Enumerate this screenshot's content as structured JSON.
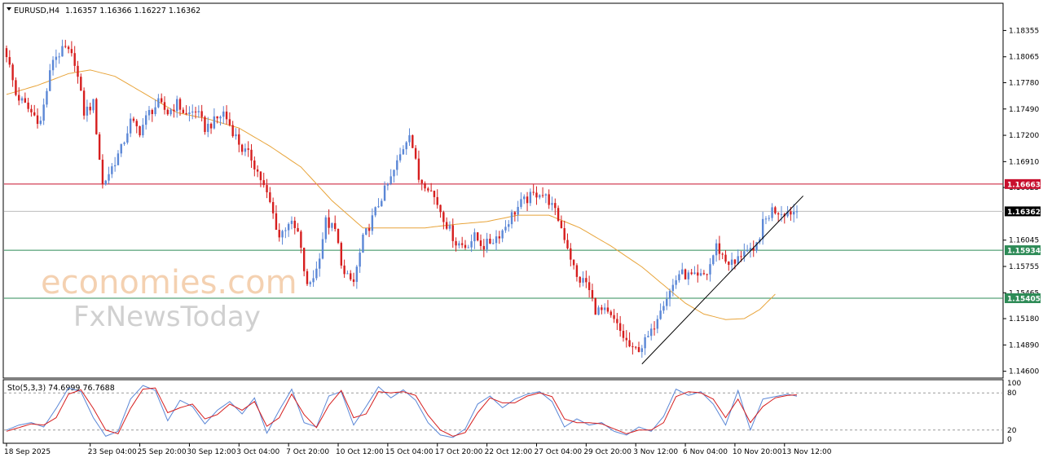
{
  "header": {
    "symbol": "EURUSD,H4",
    "ohlc": "1.16357 1.16366 1.16227 1.16362"
  },
  "watermark": {
    "line1": "economies.com",
    "line2": "FxNewsToday"
  },
  "chart_data": {
    "type": "candlestick",
    "ylim": [
      1.14534,
      1.18646
    ],
    "price_ticks": [
      "1.18355",
      "1.18065",
      "1.17780",
      "1.17490",
      "1.17200",
      "1.16910",
      "1.16625",
      "1.16045",
      "1.15755",
      "1.15465",
      "1.15180",
      "1.14890",
      "1.14600"
    ],
    "x_ticks": [
      {
        "label": "18 Sep 2025",
        "bar": 0
      },
      {
        "label": "23 Sep 04:00",
        "bar": 27
      },
      {
        "label": "25 Sep 20:00",
        "bar": 43
      },
      {
        "label": "30 Sep 12:00",
        "bar": 59
      },
      {
        "label": "3 Oct 04:00",
        "bar": 75
      },
      {
        "label": "7 Oct 20:00",
        "bar": 91
      },
      {
        "label": "10 Oct 12:00",
        "bar": 107
      },
      {
        "label": "15 Oct 04:00",
        "bar": 123
      },
      {
        "label": "17 Oct 20:00",
        "bar": 139
      },
      {
        "label": "22 Oct 12:00",
        "bar": 155
      },
      {
        "label": "27 Oct 04:00",
        "bar": 171
      },
      {
        "label": "29 Oct 20:00",
        "bar": 187
      },
      {
        "label": "3 Nov 12:00",
        "bar": 203
      },
      {
        "label": "6 Nov 04:00",
        "bar": 219
      },
      {
        "label": "10 Nov 20:00",
        "bar": 235
      },
      {
        "label": "13 Nov 12:00",
        "bar": 251
      }
    ],
    "bar_count": 256,
    "close_path": [
      [
        0,
        1.181
      ],
      [
        3,
        1.1765
      ],
      [
        8,
        1.1745
      ],
      [
        11,
        1.1735
      ],
      [
        15,
        1.1805
      ],
      [
        19,
        1.1815
      ],
      [
        22,
        1.1802
      ],
      [
        25,
        1.1745
      ],
      [
        28,
        1.1755
      ],
      [
        31,
        1.1665
      ],
      [
        34,
        1.1685
      ],
      [
        37,
        1.1705
      ],
      [
        40,
        1.1735
      ],
      [
        43,
        1.1725
      ],
      [
        46,
        1.1745
      ],
      [
        49,
        1.1755
      ],
      [
        52,
        1.1745
      ],
      [
        55,
        1.1755
      ],
      [
        58,
        1.1742
      ],
      [
        61,
        1.1748
      ],
      [
        64,
        1.1728
      ],
      [
        67,
        1.1735
      ],
      [
        70,
        1.1745
      ],
      [
        73,
        1.1725
      ],
      [
        76,
        1.1705
      ],
      [
        79,
        1.1695
      ],
      [
        82,
        1.1672
      ],
      [
        85,
        1.1645
      ],
      [
        88,
        1.1608
      ],
      [
        91,
        1.1625
      ],
      [
        94,
        1.1612
      ],
      [
        97,
        1.1552
      ],
      [
        100,
        1.1572
      ],
      [
        103,
        1.1625
      ],
      [
        106,
        1.1615
      ],
      [
        109,
        1.1565
      ],
      [
        112,
        1.1558
      ],
      [
        115,
        1.1605
      ],
      [
        118,
        1.1628
      ],
      [
        121,
        1.1652
      ],
      [
        124,
        1.1672
      ],
      [
        127,
        1.1698
      ],
      [
        130,
        1.1725
      ],
      [
        133,
        1.1672
      ],
      [
        136,
        1.1665
      ],
      [
        139,
        1.1645
      ],
      [
        142,
        1.1622
      ],
      [
        145,
        1.1602
      ],
      [
        148,
        1.1598
      ],
      [
        151,
        1.1608
      ],
      [
        154,
        1.1598
      ],
      [
        157,
        1.1605
      ],
      [
        160,
        1.1615
      ],
      [
        163,
        1.1632
      ],
      [
        166,
        1.1645
      ],
      [
        169,
        1.1652
      ],
      [
        172,
        1.1658
      ],
      [
        175,
        1.1648
      ],
      [
        178,
        1.1628
      ],
      [
        181,
        1.1598
      ],
      [
        184,
        1.1562
      ],
      [
        187,
        1.1558
      ],
      [
        190,
        1.1528
      ],
      [
        193,
        1.1525
      ],
      [
        196,
        1.1515
      ],
      [
        199,
        1.1498
      ],
      [
        202,
        1.1482
      ],
      [
        205,
        1.1488
      ],
      [
        208,
        1.1502
      ],
      [
        211,
        1.1532
      ],
      [
        214,
        1.1548
      ],
      [
        217,
        1.1568
      ],
      [
        220,
        1.1565
      ],
      [
        223,
        1.1562
      ],
      [
        226,
        1.1568
      ],
      [
        229,
        1.1598
      ],
      [
        232,
        1.1582
      ],
      [
        235,
        1.1578
      ],
      [
        238,
        1.1595
      ],
      [
        241,
        1.1588
      ],
      [
        244,
        1.1622
      ],
      [
        247,
        1.1638
      ],
      [
        250,
        1.1636
      ],
      [
        255,
        1.16362
      ]
    ],
    "ma_path": [
      [
        0,
        1.1765
      ],
      [
        10,
        1.1775
      ],
      [
        20,
        1.1788
      ],
      [
        27,
        1.1792
      ],
      [
        35,
        1.1785
      ],
      [
        45,
        1.1765
      ],
      [
        55,
        1.1745
      ],
      [
        65,
        1.1738
      ],
      [
        75,
        1.1728
      ],
      [
        85,
        1.1708
      ],
      [
        95,
        1.1685
      ],
      [
        105,
        1.1648
      ],
      [
        115,
        1.1618
      ],
      [
        125,
        1.1618
      ],
      [
        135,
        1.1618
      ],
      [
        145,
        1.1622
      ],
      [
        155,
        1.1625
      ],
      [
        165,
        1.1632
      ],
      [
        175,
        1.1632
      ],
      [
        185,
        1.1618
      ],
      [
        195,
        1.1598
      ],
      [
        205,
        1.1575
      ],
      [
        212,
        1.1555
      ],
      [
        219,
        1.1535
      ],
      [
        225,
        1.1523
      ],
      [
        232,
        1.1517
      ],
      [
        238,
        1.1518
      ],
      [
        243,
        1.1528
      ],
      [
        248,
        1.1545
      ]
    ],
    "resistance": {
      "value": 1.16663,
      "label": "1.16663",
      "color": "#c8102e"
    },
    "current": {
      "value": 1.16362,
      "label": "1.16362",
      "color": "#000000"
    },
    "support1": {
      "value": 1.15934,
      "label": "1.15934",
      "color": "#2e8b57"
    },
    "support2": {
      "value": 1.15405,
      "label": "1.15405",
      "color": "#2e8b57"
    },
    "trendline": [
      [
        205,
        1.1468
      ],
      [
        255,
        1.16245
      ]
    ],
    "colors": {
      "bull": "#5b87d6",
      "bear": "#d61e1e",
      "ma": "#e8a43a",
      "sto_main": "#5b87d6",
      "sto_signal": "#d61e1e"
    },
    "stochastic": {
      "label": "Sto(5,3,3) 74.6999 76.7688",
      "levels": [
        "100",
        "80",
        "20",
        "0"
      ],
      "ylim": [
        0,
        100
      ],
      "main_path": [
        [
          0,
          20
        ],
        [
          4,
          28
        ],
        [
          8,
          32
        ],
        [
          12,
          25
        ],
        [
          16,
          55
        ],
        [
          20,
          88
        ],
        [
          24,
          82
        ],
        [
          28,
          40
        ],
        [
          32,
          10
        ],
        [
          36,
          18
        ],
        [
          40,
          70
        ],
        [
          44,
          92
        ],
        [
          48,
          84
        ],
        [
          52,
          35
        ],
        [
          56,
          68
        ],
        [
          60,
          58
        ],
        [
          64,
          30
        ],
        [
          68,
          52
        ],
        [
          72,
          66
        ],
        [
          76,
          46
        ],
        [
          80,
          72
        ],
        [
          84,
          15
        ],
        [
          88,
          52
        ],
        [
          92,
          86
        ],
        [
          96,
          32
        ],
        [
          100,
          25
        ],
        [
          104,
          75
        ],
        [
          108,
          82
        ],
        [
          112,
          28
        ],
        [
          116,
          58
        ],
        [
          120,
          90
        ],
        [
          124,
          72
        ],
        [
          128,
          85
        ],
        [
          132,
          68
        ],
        [
          136,
          32
        ],
        [
          140,
          12
        ],
        [
          144,
          8
        ],
        [
          148,
          22
        ],
        [
          152,
          62
        ],
        [
          156,
          75
        ],
        [
          160,
          56
        ],
        [
          164,
          70
        ],
        [
          168,
          78
        ],
        [
          172,
          82
        ],
        [
          176,
          66
        ],
        [
          180,
          25
        ],
        [
          184,
          38
        ],
        [
          188,
          28
        ],
        [
          192,
          32
        ],
        [
          196,
          18
        ],
        [
          200,
          12
        ],
        [
          204,
          25
        ],
        [
          208,
          18
        ],
        [
          212,
          42
        ],
        [
          216,
          86
        ],
        [
          220,
          76
        ],
        [
          224,
          82
        ],
        [
          228,
          62
        ],
        [
          232,
          28
        ],
        [
          236,
          84
        ],
        [
          240,
          20
        ],
        [
          244,
          70
        ],
        [
          248,
          74
        ],
        [
          252,
          78
        ],
        [
          255,
          74.7
        ]
      ],
      "signal_path": [
        [
          0,
          18
        ],
        [
          4,
          24
        ],
        [
          8,
          30
        ],
        [
          12,
          28
        ],
        [
          16,
          40
        ],
        [
          20,
          78
        ],
        [
          24,
          85
        ],
        [
          28,
          55
        ],
        [
          32,
          20
        ],
        [
          36,
          14
        ],
        [
          40,
          55
        ],
        [
          44,
          86
        ],
        [
          48,
          88
        ],
        [
          52,
          48
        ],
        [
          56,
          56
        ],
        [
          60,
          62
        ],
        [
          64,
          38
        ],
        [
          68,
          45
        ],
        [
          72,
          62
        ],
        [
          76,
          52
        ],
        [
          80,
          66
        ],
        [
          84,
          26
        ],
        [
          88,
          40
        ],
        [
          92,
          78
        ],
        [
          96,
          45
        ],
        [
          100,
          24
        ],
        [
          104,
          60
        ],
        [
          108,
          84
        ],
        [
          112,
          40
        ],
        [
          116,
          46
        ],
        [
          120,
          82
        ],
        [
          124,
          80
        ],
        [
          128,
          82
        ],
        [
          132,
          76
        ],
        [
          136,
          44
        ],
        [
          140,
          20
        ],
        [
          144,
          10
        ],
        [
          148,
          16
        ],
        [
          152,
          48
        ],
        [
          156,
          72
        ],
        [
          160,
          64
        ],
        [
          164,
          64
        ],
        [
          168,
          75
        ],
        [
          172,
          80
        ],
        [
          176,
          74
        ],
        [
          180,
          38
        ],
        [
          184,
          32
        ],
        [
          188,
          32
        ],
        [
          192,
          30
        ],
        [
          196,
          22
        ],
        [
          200,
          14
        ],
        [
          204,
          20
        ],
        [
          208,
          20
        ],
        [
          212,
          32
        ],
        [
          216,
          74
        ],
        [
          220,
          82
        ],
        [
          224,
          80
        ],
        [
          228,
          70
        ],
        [
          232,
          40
        ],
        [
          236,
          70
        ],
        [
          240,
          32
        ],
        [
          244,
          58
        ],
        [
          248,
          72
        ],
        [
          252,
          76
        ],
        [
          255,
          76.8
        ]
      ]
    }
  }
}
